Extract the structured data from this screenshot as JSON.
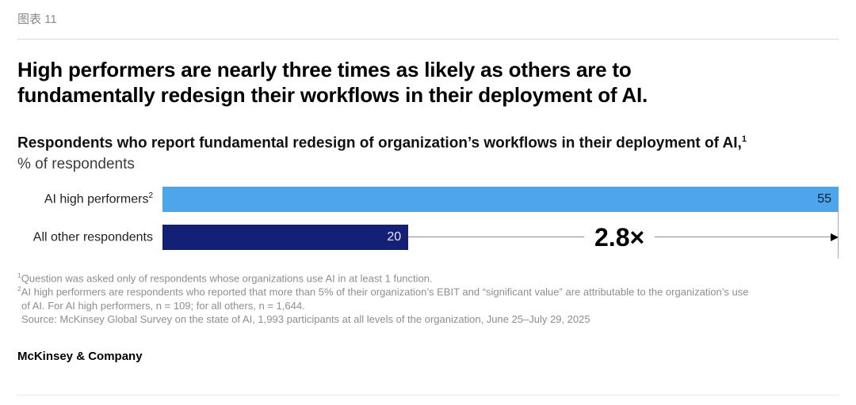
{
  "page": {
    "eyebrow": "图表 11",
    "title": "High performers are nearly three times as likely as others are to fundamentally redesign their workflows in their deployment of AI.",
    "subtitle": "Respondents who report fundamental redesign of organization’s workflows in their deployment of AI,",
    "subtitle_sup": "1",
    "unit_label": "% of respondents",
    "brand": "McKinsey & Company"
  },
  "chart_data": {
    "type": "bar",
    "orientation": "horizontal",
    "title": "Respondents who report fundamental redesign of organization’s workflows in their deployment of AI",
    "xlabel": "% of respondents",
    "categories": [
      "AI high performers",
      "All other respondents"
    ],
    "category_sups": [
      "2",
      ""
    ],
    "values": [
      55,
      20
    ],
    "value_labels": [
      "55",
      "20"
    ],
    "xlim": [
      0,
      55
    ],
    "grid": false,
    "legend": false,
    "multiplier_annotation": "2.8×",
    "colors": {
      "bar_high_performers": "#4DA6EB",
      "bar_others": "#132076",
      "value_text_dark": "#0B1F2E",
      "value_text_light": "#E8E9F2"
    }
  },
  "footnotes": [
    {
      "sup": "1",
      "text": "Question was asked only of respondents whose organizations use AI in at least 1 function."
    },
    {
      "sup": "2",
      "text": "AI high performers are respondents who reported that more than 5% of their organization’s EBIT and “significant value” are attributable to the organization’s use"
    },
    {
      "sup": "",
      "text": "of AI. For AI high performers, n = 109; for all others, n = 1,644."
    },
    {
      "sup": "",
      "text": "Source: McKinsey Global Survey on the state of AI, 1,993 participants at all levels of the organization, June 25–July 29, 2025"
    }
  ]
}
